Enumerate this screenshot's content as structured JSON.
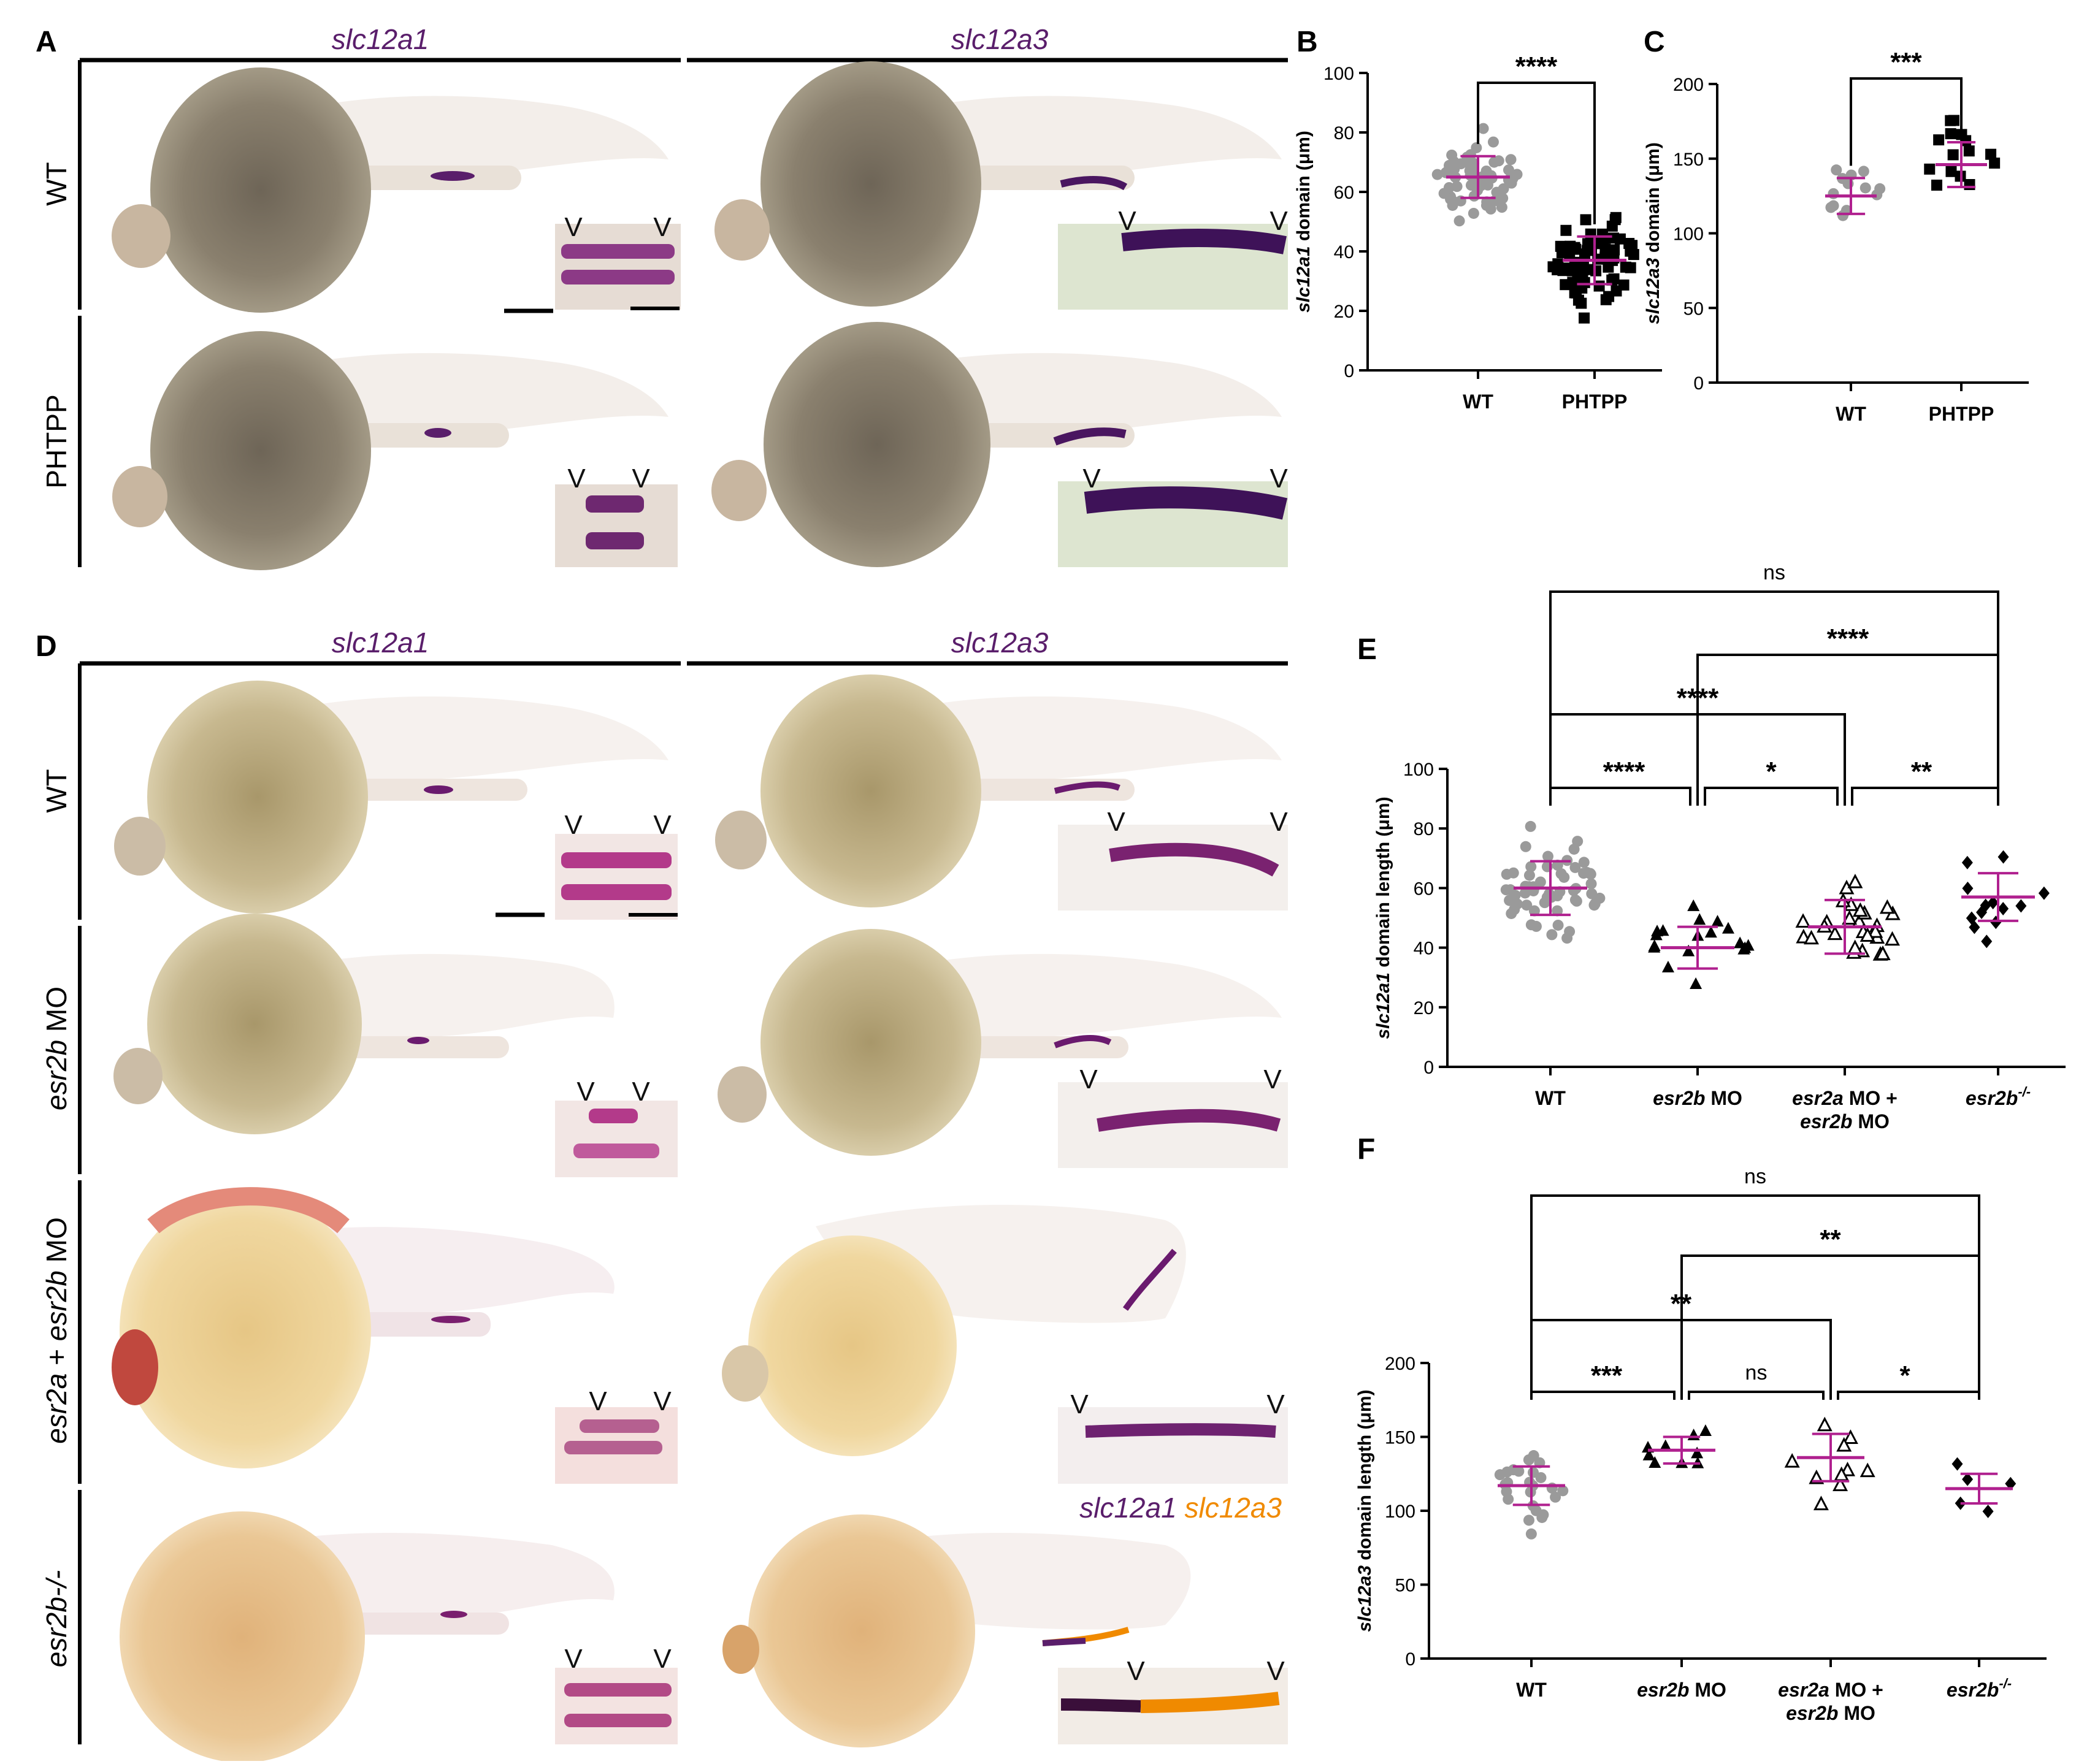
{
  "panels": {
    "A": "A",
    "B": "B",
    "C": "C",
    "D": "D",
    "E": "E",
    "F": "F"
  },
  "genes": {
    "a1": "slc12a1",
    "a3": "slc12a3"
  },
  "rows_top": [
    "WT",
    "PHTPP"
  ],
  "rows_bottom": {
    "wt": "WT",
    "esr2b_mo_gene": "esr2b",
    "esr2b_mo_suffix": " MO",
    "double_a": "esr2a",
    "double_plus": " + ",
    "double_b": "esr2b",
    "double_mo": " MO",
    "mutant": "esr2b-/-"
  },
  "insert_marker": "V",
  "legend": {
    "a1": "slc12a1",
    "a3": "slc12a3"
  },
  "colors": {
    "purple": "#5a1e6b",
    "magenta": "#b0208f",
    "grey": "#9a9a9a",
    "orange": "#f08a00"
  },
  "chart_data": [
    {
      "id": "B",
      "type": "scatter",
      "ylabel_gene": "slc12a1",
      "ylabel_rest": " domain (μm)",
      "ylim": [
        0,
        100
      ],
      "yticks": [
        0,
        20,
        40,
        60,
        80,
        100
      ],
      "categories": [
        "WT",
        "PHTPP"
      ],
      "series": [
        {
          "name": "WT",
          "mean": 65,
          "sd": 7,
          "n": 60
        },
        {
          "name": "PHTPP",
          "mean": 37,
          "sd": 8,
          "n": 70
        }
      ],
      "comparisons": [
        {
          "from": 0,
          "to": 1,
          "label": "****"
        }
      ]
    },
    {
      "id": "C",
      "type": "scatter",
      "ylabel_gene": "slc12a3",
      "ylabel_rest": " domain  (μm)",
      "ylim": [
        0,
        200
      ],
      "yticks": [
        0,
        50,
        100,
        150,
        200
      ],
      "categories": [
        "WT",
        "PHTPP"
      ],
      "series": [
        {
          "name": "WT",
          "mean": 125,
          "sd": 12,
          "n": 13
        },
        {
          "name": "PHTPP",
          "mean": 146,
          "sd": 15,
          "n": 15
        }
      ],
      "comparisons": [
        {
          "from": 0,
          "to": 1,
          "label": "***"
        }
      ]
    },
    {
      "id": "E",
      "type": "scatter",
      "ylabel_gene": "slc12a1",
      "ylabel_rest": " domain length (μm)",
      "ylim": [
        0,
        100
      ],
      "yticks": [
        0,
        20,
        40,
        60,
        80,
        100
      ],
      "categories": [
        "WT",
        "esr2b MO",
        "esr2a MO + esr2b MO",
        "esr2b-/-"
      ],
      "series": [
        {
          "name": "WT",
          "mean": 60,
          "sd": 9,
          "n": 60
        },
        {
          "name": "esr2b MO",
          "mean": 40,
          "sd": 7,
          "n": 18
        },
        {
          "name": "esr2a MO + esr2b MO",
          "mean": 47,
          "sd": 9,
          "n": 28
        },
        {
          "name": "esr2b-/-",
          "mean": 57,
          "sd": 8,
          "n": 13
        }
      ],
      "comparisons": [
        {
          "from": 0,
          "to": 1,
          "label": "****"
        },
        {
          "from": 1,
          "to": 2,
          "label": "*"
        },
        {
          "from": 2,
          "to": 3,
          "label": "**"
        },
        {
          "from": 0,
          "to": 2,
          "label": "****"
        },
        {
          "from": 1,
          "to": 3,
          "label": "****"
        },
        {
          "from": 0,
          "to": 3,
          "label": "ns"
        }
      ]
    },
    {
      "id": "F",
      "type": "scatter",
      "ylabel_gene": "slc12a3",
      "ylabel_rest": " domain length (μm)",
      "ylim": [
        0,
        200
      ],
      "yticks": [
        0,
        50,
        100,
        150,
        200
      ],
      "categories": [
        "WT",
        "esr2b MO",
        "esr2a MO + esr2b MO",
        "esr2b-/-"
      ],
      "series": [
        {
          "name": "WT",
          "mean": 117,
          "sd": 13,
          "n": 25
        },
        {
          "name": "esr2b MO",
          "mean": 141,
          "sd": 9,
          "n": 9
        },
        {
          "name": "esr2a MO + esr2b MO",
          "mean": 136,
          "sd": 16,
          "n": 10
        },
        {
          "name": "esr2b-/-",
          "mean": 115,
          "sd": 10,
          "n": 5
        }
      ],
      "comparisons": [
        {
          "from": 0,
          "to": 1,
          "label": "***"
        },
        {
          "from": 1,
          "to": 2,
          "label": "ns"
        },
        {
          "from": 2,
          "to": 3,
          "label": "*"
        },
        {
          "from": 0,
          "to": 2,
          "label": "**"
        },
        {
          "from": 1,
          "to": 3,
          "label": "**"
        },
        {
          "from": 0,
          "to": 3,
          "label": "ns"
        }
      ]
    }
  ]
}
